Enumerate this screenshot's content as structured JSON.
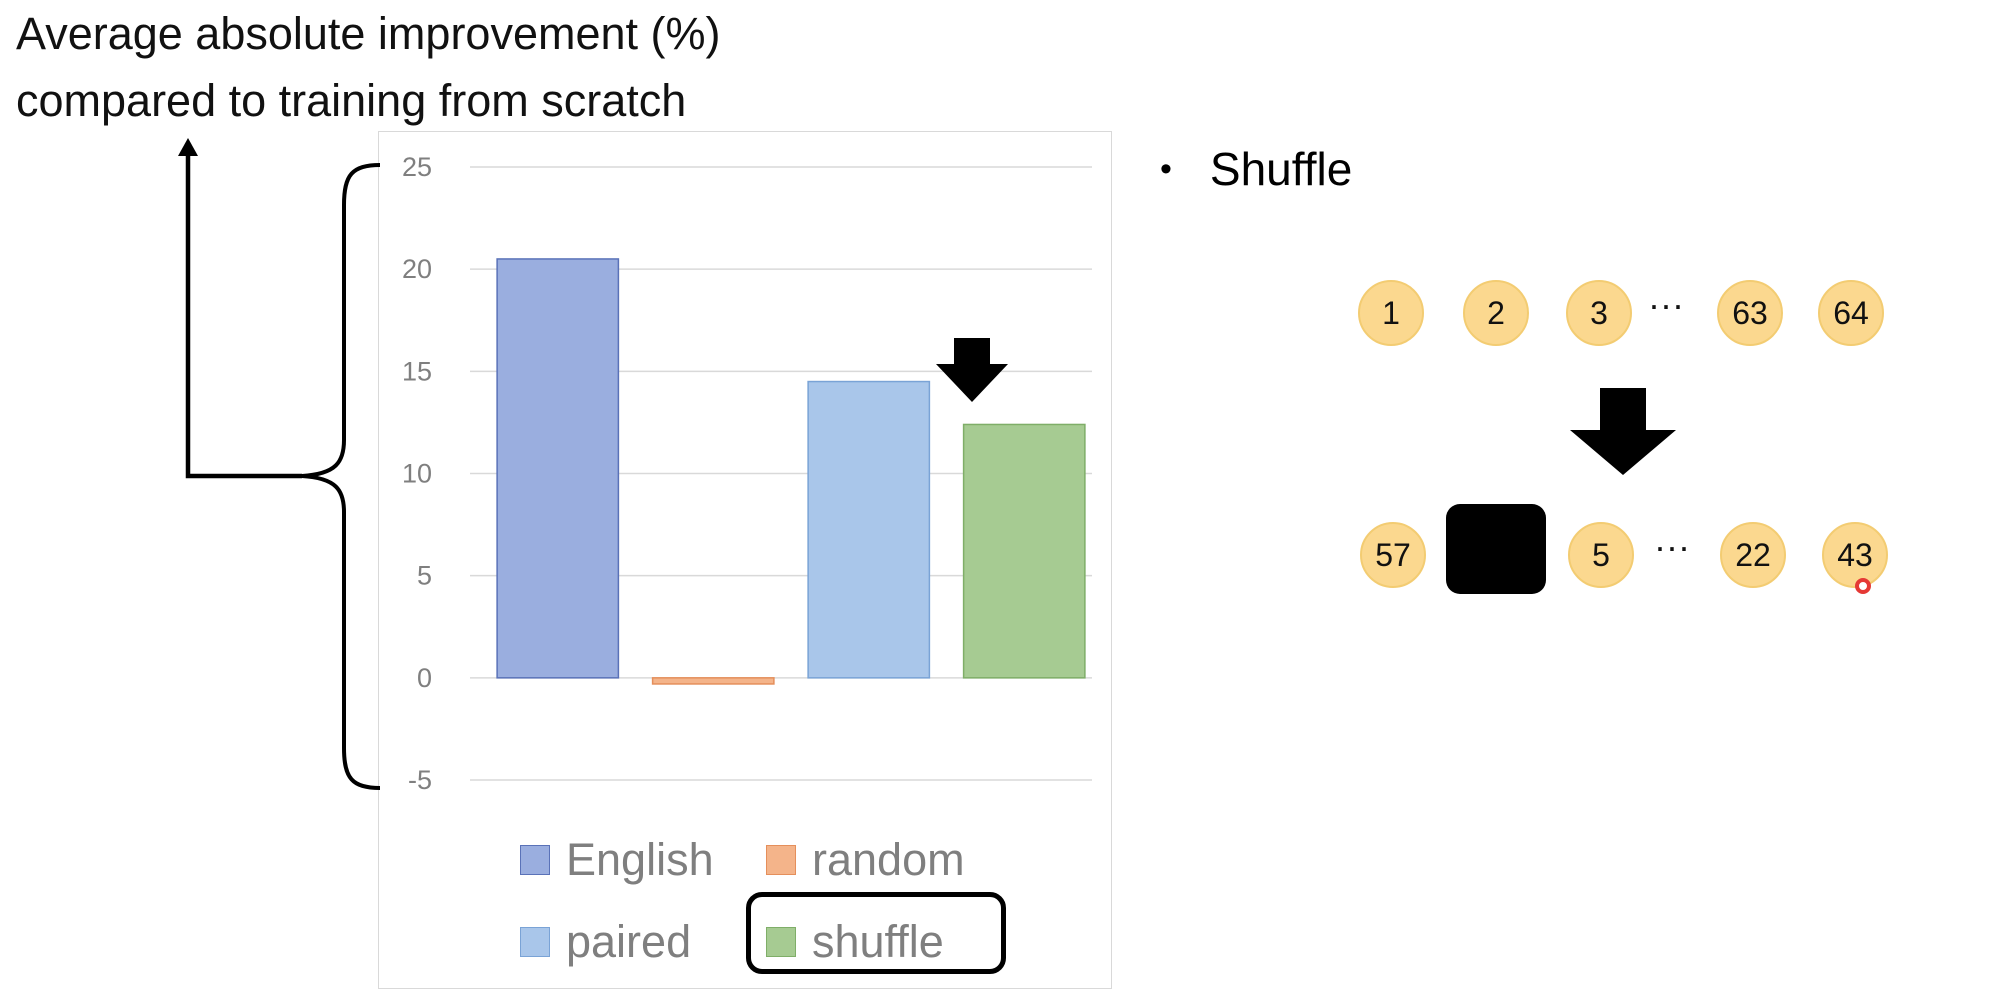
{
  "title_lines": [
    "Average absolute improvement (%)",
    "compared to training from scratch"
  ],
  "bullet": "Shuffle",
  "sequence_top": [
    "1",
    "2",
    "3",
    "63",
    "64"
  ],
  "sequence_bottom": [
    "57",
    "5",
    "22",
    "43"
  ],
  "ellipsis": "···",
  "chart_data": {
    "type": "bar",
    "categories": [
      "English",
      "random",
      "paired",
      "shuffle"
    ],
    "values": [
      20.5,
      -0.3,
      14.5,
      12.4
    ],
    "colors": [
      "#9aaedf",
      "#f4b48a",
      "#a9c6ea",
      "#a6cb92"
    ],
    "ylim": [
      -5,
      25
    ],
    "yticks": [
      "25",
      "20",
      "15",
      "10",
      "5",
      "0",
      "-5"
    ],
    "grid": true,
    "legend": "bottom",
    "highlighted": "shuffle"
  }
}
